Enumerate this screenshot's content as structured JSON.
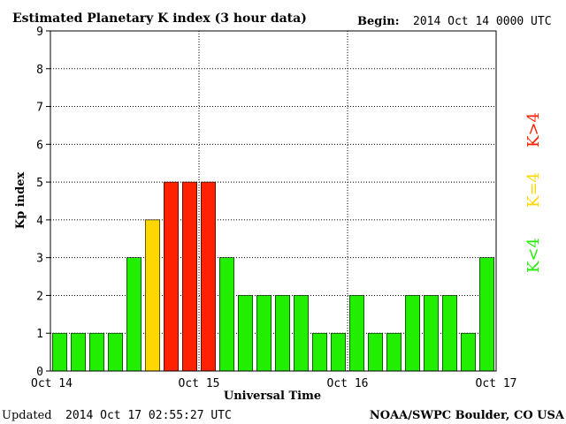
{
  "header": {
    "title": "Estimated Planetary K index (3 hour data)",
    "begin_label": "Begin:",
    "begin_value": "2014 Oct 14 0000 UTC"
  },
  "footer": {
    "updated_label": "Updated",
    "updated_value": "2014 Oct 17 02:55:27 UTC",
    "source": "NOAA/SWPC Boulder, CO USA"
  },
  "legend": {
    "low": {
      "label": "K<4",
      "color": "#22ee00"
    },
    "equal": {
      "label": "K=4",
      "color": "#ffd700"
    },
    "high": {
      "label": "K>4",
      "color": "#ff2200"
    }
  },
  "chart_data": {
    "type": "bar",
    "title": "Estimated Planetary K index (3 hour data)",
    "xlabel": "Universal Time",
    "ylabel": "Kp index",
    "ylim": [
      0,
      9
    ],
    "yticks": [
      0,
      1,
      2,
      3,
      4,
      5,
      6,
      7,
      8,
      9
    ],
    "xticks": [
      {
        "label": "Oct 14",
        "index": 0
      },
      {
        "label": "Oct 15",
        "index": 8
      },
      {
        "label": "Oct 16",
        "index": 16
      },
      {
        "label": "Oct 17",
        "index": 24
      }
    ],
    "interval_hours": 3,
    "values": [
      1,
      1,
      1,
      1,
      3,
      4,
      5,
      5,
      5,
      3,
      2,
      2,
      2,
      2,
      1,
      1,
      2,
      1,
      1,
      2,
      2,
      2,
      1,
      3
    ],
    "grid": "dotted",
    "colors": {
      "low": "#22ee00",
      "equal": "#ffd700",
      "high": "#ff2200"
    }
  }
}
